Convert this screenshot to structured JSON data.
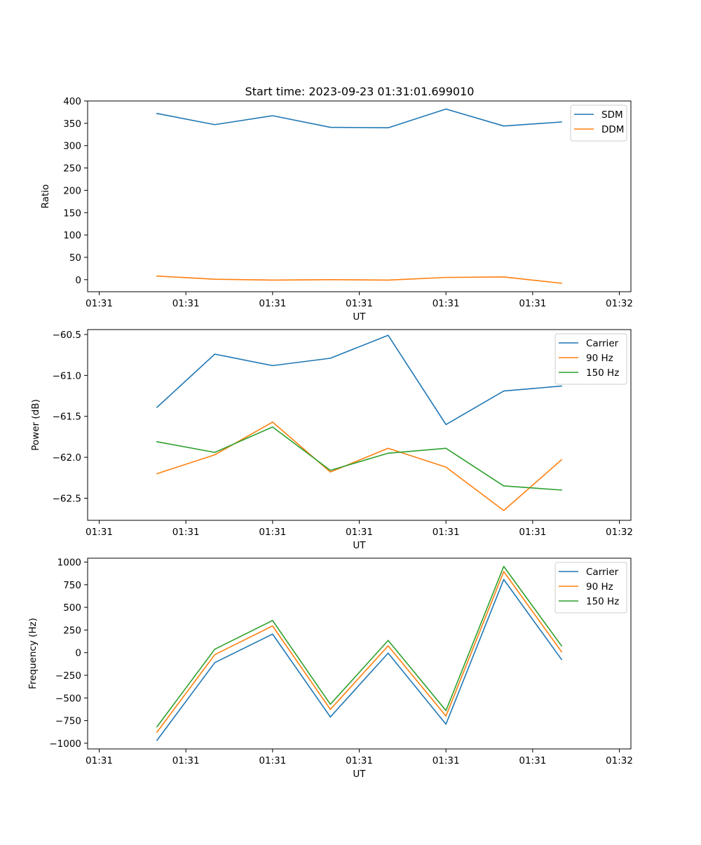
{
  "figure": {
    "title": "Start time: 2023-09-23 01:31:01.699010"
  },
  "colors": {
    "blue": "#1f77b4",
    "orange": "#ff7f0e",
    "green": "#2ca02c"
  },
  "chart_data": [
    {
      "type": "line",
      "title": "Start time: 2023-09-23 01:31:01.699010",
      "xlabel": "UT",
      "ylabel": "Ratio",
      "x": [
        1.5,
        2.5,
        3.5,
        4.5,
        5.5,
        6.5,
        7.5,
        8.5
      ],
      "xlim": [
        0.3,
        9.7
      ],
      "xticks": [
        0.5,
        2,
        3.5,
        5,
        6.5,
        8,
        9.5
      ],
      "xtick_labels": [
        "01:31",
        "01:31",
        "01:31",
        "01:31",
        "01:31",
        "01:31",
        "01:32"
      ],
      "ylim": [
        -27,
        400
      ],
      "yticks": [
        0,
        50,
        100,
        150,
        200,
        250,
        300,
        350,
        400
      ],
      "ytick_labels": [
        "0",
        "50",
        "100",
        "150",
        "200",
        "250",
        "300",
        "350",
        "400"
      ],
      "legend_position": "top-right",
      "series": [
        {
          "name": "SDM",
          "color": "#1f77b4",
          "values": [
            372,
            347,
            367,
            341,
            340,
            382,
            344,
            353
          ]
        },
        {
          "name": "DDM",
          "color": "#ff7f0e",
          "values": [
            8,
            1,
            -1,
            0,
            -1,
            5,
            6,
            -8
          ]
        }
      ]
    },
    {
      "type": "line",
      "title": "",
      "xlabel": "UT",
      "ylabel": "Power (dB)",
      "x": [
        1.5,
        2.5,
        3.5,
        4.5,
        5.5,
        6.5,
        7.5,
        8.5
      ],
      "xlim": [
        0.3,
        9.7
      ],
      "xticks": [
        0.5,
        2,
        3.5,
        5,
        6.5,
        8,
        9.5
      ],
      "xtick_labels": [
        "01:31",
        "01:31",
        "01:31",
        "01:31",
        "01:31",
        "01:31",
        "01:32"
      ],
      "ylim": [
        -62.77,
        -60.44
      ],
      "yticks": [
        -62.5,
        -62.0,
        -61.5,
        -61.0,
        -60.5
      ],
      "ytick_labels": [
        "−62.5",
        "−62.0",
        "−61.5",
        "−61.0",
        "−60.5"
      ],
      "legend_position": "top-right",
      "series": [
        {
          "name": "Carrier",
          "color": "#1f77b4",
          "values": [
            -61.39,
            -60.74,
            -60.88,
            -60.79,
            -60.51,
            -61.6,
            -61.19,
            -61.13
          ]
        },
        {
          "name": "90 Hz",
          "color": "#ff7f0e",
          "values": [
            -62.2,
            -61.97,
            -61.57,
            -62.18,
            -61.89,
            -62.12,
            -62.65,
            -62.03
          ]
        },
        {
          "name": "150 Hz",
          "color": "#2ca02c",
          "values": [
            -61.81,
            -61.94,
            -61.63,
            -62.16,
            -61.95,
            -61.89,
            -62.35,
            -62.4
          ]
        }
      ]
    },
    {
      "type": "line",
      "title": "",
      "xlabel": "UT",
      "ylabel": "Frequency (Hz)",
      "x": [
        1.5,
        2.5,
        3.5,
        4.5,
        5.5,
        6.5,
        7.5,
        8.5
      ],
      "xlim": [
        0.3,
        9.7
      ],
      "xticks": [
        0.5,
        2,
        3.5,
        5,
        6.5,
        8,
        9.5
      ],
      "xtick_labels": [
        "01:31",
        "01:31",
        "01:31",
        "01:31",
        "01:31",
        "01:31",
        "01:32"
      ],
      "ylim": [
        -1063,
        1043
      ],
      "yticks": [
        -1000,
        -750,
        -500,
        -250,
        0,
        250,
        500,
        750,
        1000
      ],
      "ytick_labels": [
        "−1000",
        "−750",
        "−500",
        "−250",
        "0",
        "250",
        "500",
        "750",
        "1000"
      ],
      "legend_position": "top-right",
      "series": [
        {
          "name": "Carrier",
          "color": "#1f77b4",
          "values": [
            -968,
            -110,
            205,
            -710,
            -5,
            -790,
            808,
            -75
          ]
        },
        {
          "name": "90 Hz",
          "color": "#ff7f0e",
          "values": [
            -878,
            -22,
            295,
            -627,
            75,
            -700,
            895,
            10
          ]
        },
        {
          "name": "150 Hz",
          "color": "#2ca02c",
          "values": [
            -818,
            38,
            355,
            -570,
            135,
            -640,
            952,
            75
          ]
        }
      ]
    }
  ]
}
